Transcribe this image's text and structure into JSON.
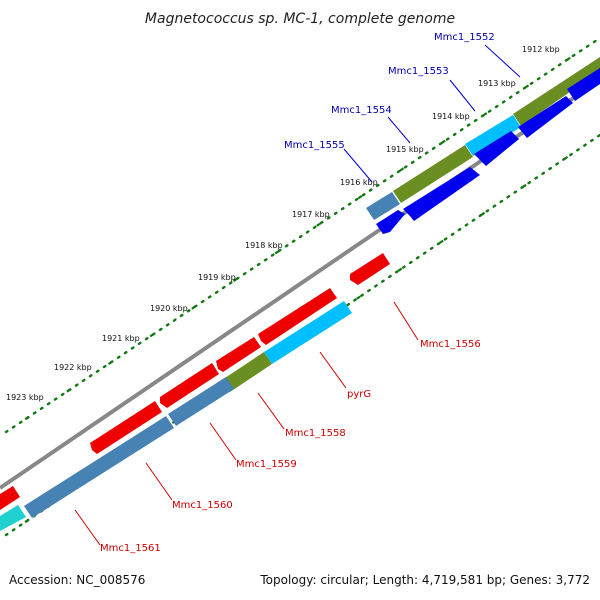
{
  "title": "Magnetococcus sp. MC-1, complete genome",
  "footer": {
    "accession": "Accession: NC_008576",
    "topology": "Topology: circular; Length: 4,719,581 bp; Genes: 3,772"
  },
  "ticks": [
    {
      "label": "1912 kbp"
    },
    {
      "label": "1913 kbp"
    },
    {
      "label": "1914 kbp"
    },
    {
      "label": "1915 kbp"
    },
    {
      "label": "1916 kbp"
    },
    {
      "label": "1917 kbp"
    },
    {
      "label": "1918 kbp"
    },
    {
      "label": "1919 kbp"
    },
    {
      "label": "1920 kbp"
    },
    {
      "label": "1921 kbp"
    },
    {
      "label": "1922 kbp"
    },
    {
      "label": "1923 kbp"
    }
  ],
  "gene_labels": [
    {
      "text": "Mmc1_1552",
      "color": "#0000aa"
    },
    {
      "text": "Mmc1_1553",
      "color": "#0000aa"
    },
    {
      "text": "Mmc1_1554",
      "color": "#0000aa"
    },
    {
      "text": "Mmc1_1555",
      "color": "#0000aa"
    },
    {
      "text": "Mmc1_1556",
      "color": "#cc0000"
    },
    {
      "text": "pyrG",
      "color": "#cc0000"
    },
    {
      "text": "Mmc1_1558",
      "color": "#cc0000"
    },
    {
      "text": "Mmc1_1559",
      "color": "#cc0000"
    },
    {
      "text": "Mmc1_1560",
      "color": "#cc0000"
    },
    {
      "text": "Mmc1_1561",
      "color": "#cc0000"
    }
  ],
  "colors": {
    "forward_gene": "#0000ee",
    "reverse_gene": "#ee0000",
    "backbone": "#888888",
    "tick_dots": "#117711",
    "cog_olive": "#6b8e23",
    "cog_steel": "#4682b4",
    "cog_cyan": "#00bfff",
    "cog_teal": "#20d0d0",
    "forward_label": "#0000aa",
    "reverse_label": "#cc0000"
  }
}
